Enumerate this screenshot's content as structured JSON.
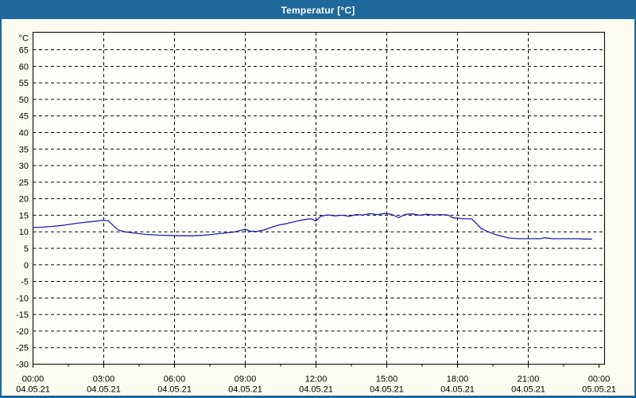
{
  "window": {
    "title": "Temperatur [°C]"
  },
  "colors": {
    "titlebar_bg": "#1e689b",
    "titlebar_text": "#ffffff",
    "window_border": "#1e689b",
    "page_bg": "#fcfcf0",
    "plot_bg": "#fefefa",
    "grid_line": "#000000",
    "axis_text": "#000000",
    "curve": "#2020bb"
  },
  "chart_data": {
    "type": "line",
    "title": "Temperatur [°C]",
    "ylabel": "°C",
    "xlabel": "",
    "legend_position": "none",
    "grid": {
      "style": "dashed",
      "horizontal": true,
      "vertical": true
    },
    "y_axis": {
      "unit": "°C",
      "min": -30,
      "max": 65,
      "step": 5,
      "frame_top_value": 70.3
    },
    "x_axis": {
      "range_hours": [
        0,
        24
      ],
      "major_tick_interval_hours": 3,
      "minor_tick_interval_hours": 1.5,
      "tick_labels": [
        {
          "time": "00:00",
          "date": "04.05.21"
        },
        {
          "time": "03:00",
          "date": "04.05.21"
        },
        {
          "time": "06:00",
          "date": "04.05.21"
        },
        {
          "time": "09:00",
          "date": "04.05.21"
        },
        {
          "time": "12:00",
          "date": "04.05.21"
        },
        {
          "time": "15:00",
          "date": "04.05.21"
        },
        {
          "time": "18:00",
          "date": "04.05.21"
        },
        {
          "time": "21:00",
          "date": "04.05.21"
        },
        {
          "time": "00:00",
          "date": "05.05.21"
        }
      ]
    },
    "series": [
      {
        "name": "Temperatur",
        "unit": "°C",
        "color": "#2020bb",
        "points_hours_celsius": [
          [
            0.0,
            11.3
          ],
          [
            0.4,
            11.4
          ],
          [
            0.8,
            11.6
          ],
          [
            1.2,
            11.9
          ],
          [
            1.6,
            12.3
          ],
          [
            2.0,
            12.7
          ],
          [
            2.4,
            13.0
          ],
          [
            2.8,
            13.3
          ],
          [
            3.0,
            13.5
          ],
          [
            3.2,
            13.3
          ],
          [
            3.4,
            11.9
          ],
          [
            3.6,
            10.6
          ],
          [
            3.9,
            10.0
          ],
          [
            4.3,
            9.6
          ],
          [
            4.8,
            9.2
          ],
          [
            5.3,
            9.0
          ],
          [
            5.8,
            8.9
          ],
          [
            6.3,
            8.8
          ],
          [
            6.8,
            8.8
          ],
          [
            7.3,
            9.0
          ],
          [
            7.7,
            9.3
          ],
          [
            8.1,
            9.6
          ],
          [
            8.5,
            9.9
          ],
          [
            8.8,
            10.4
          ],
          [
            9.0,
            10.8
          ],
          [
            9.2,
            10.2
          ],
          [
            9.5,
            10.1
          ],
          [
            9.8,
            10.6
          ],
          [
            10.1,
            11.3
          ],
          [
            10.4,
            12.0
          ],
          [
            10.7,
            12.4
          ],
          [
            11.0,
            12.9
          ],
          [
            11.3,
            13.4
          ],
          [
            11.6,
            13.8
          ],
          [
            11.8,
            13.9
          ],
          [
            12.0,
            13.3
          ],
          [
            12.2,
            14.7
          ],
          [
            12.5,
            15.1
          ],
          [
            12.8,
            14.8
          ],
          [
            13.1,
            15.0
          ],
          [
            13.4,
            14.7
          ],
          [
            13.7,
            15.2
          ],
          [
            14.0,
            15.1
          ],
          [
            14.3,
            15.5
          ],
          [
            14.6,
            15.2
          ],
          [
            14.9,
            15.5
          ],
          [
            15.2,
            15.3
          ],
          [
            15.5,
            14.3
          ],
          [
            15.8,
            15.3
          ],
          [
            16.1,
            15.4
          ],
          [
            16.4,
            15.0
          ],
          [
            16.7,
            15.3
          ],
          [
            17.0,
            15.1
          ],
          [
            17.3,
            15.2
          ],
          [
            17.6,
            15.1
          ],
          [
            17.8,
            14.2
          ],
          [
            18.2,
            14.0
          ],
          [
            18.6,
            13.9
          ],
          [
            18.8,
            12.5
          ],
          [
            19.0,
            11.0
          ],
          [
            19.3,
            10.0
          ],
          [
            19.6,
            9.2
          ],
          [
            19.9,
            8.6
          ],
          [
            20.2,
            8.1
          ],
          [
            20.6,
            7.9
          ],
          [
            21.0,
            7.9
          ],
          [
            21.5,
            7.9
          ],
          [
            21.7,
            8.2
          ],
          [
            22.0,
            7.9
          ],
          [
            22.5,
            7.9
          ],
          [
            23.0,
            7.9
          ],
          [
            23.4,
            7.8
          ],
          [
            23.7,
            7.8
          ]
        ]
      }
    ]
  }
}
